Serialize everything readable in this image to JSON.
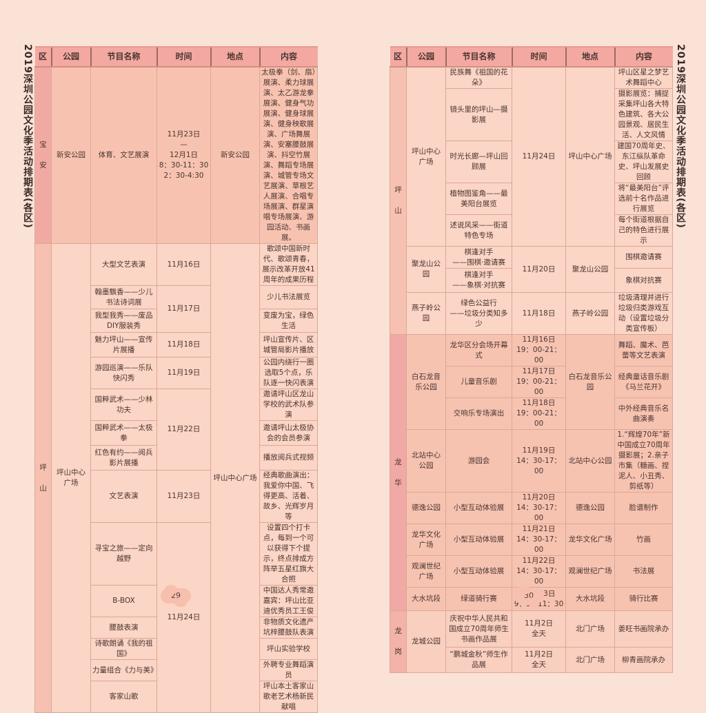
{
  "title": "2019深圳公园文化季活动排期表(各区)",
  "headers": [
    "区",
    "公园",
    "节目名称",
    "时间",
    "地点",
    "内容"
  ],
  "colors": {
    "background": "#fbe2d6",
    "header": "#f3a9a1",
    "宝安": {
      "district": "#f1aaa3",
      "cell": "#f7c3b0"
    },
    "坪山": {
      "district": "#f6c1b0",
      "cell": "#fbd5c5"
    },
    "龙华": {
      "district": "#f0a9a4",
      "cell": "#f7c3b1"
    },
    "龙岗": {
      "district": "#f3b3a8",
      "cell": "#f9cfbf"
    }
  },
  "pages": [
    {
      "page_number": "29",
      "districts": [
        {
          "name": "宝安",
          "parks": [
            {
              "name": "新安公园",
              "place": "新安公园",
              "sessions": [
                {
                  "time": "11月23日\n—\n12月1日\n8：30-11：30\n2：30-4:30",
                  "programs": [
                    {
                      "name": "体育、文艺展演",
                      "content": "太极拳（剑、扇）展演、柔力球展演、太乙游龙拳展演、健身气功展演、健身球展演、健身秧歌展演、广场舞展演、安塞腰鼓展演、抖空竹展演、舞蹈专场展演、城管专场文艺展演、草根艺人展演、合唱专场展演、群星演唱专场展演、游园活动、书画展。"
                    }
                  ]
                }
              ]
            }
          ]
        },
        {
          "name": "坪山",
          "parks": [
            {
              "name": "坪山中心广场",
              "place": "坪山中心广场",
              "sessions": [
                {
                  "time": "11月16日",
                  "programs": [
                    {
                      "name": "大型文艺表演",
                      "content": "歌颂中国新时代、歌颂青春，展示改革开放41周年的成果历程"
                    }
                  ]
                },
                {
                  "time": "11月17日",
                  "programs": [
                    {
                      "name": "翰墨飘香——少儿书法诗词展",
                      "content": "少儿书法展览"
                    },
                    {
                      "name": "我型我秀——废品DIY服装秀",
                      "content": "变废为宝，绿色生活"
                    }
                  ]
                },
                {
                  "time": "11月18日",
                  "programs": [
                    {
                      "name": "魅力坪山——宣传片展播",
                      "content": "坪山宣传片、区城管局影片播放"
                    }
                  ]
                },
                {
                  "time": "11月19日",
                  "programs": [
                    {
                      "name": "游园巡演——乐队快闪秀",
                      "content": "公园内绕行一圈选取5个点，乐队逐一快闪表演"
                    }
                  ]
                },
                {
                  "time": "11月22日",
                  "programs": [
                    {
                      "name": "国粹武术——少林功夫",
                      "content": "邀请坪山区龙山学校的武术队参演"
                    },
                    {
                      "name": "国粹武术——太极拳",
                      "content": "邀请坪山太极协会的会员参演"
                    },
                    {
                      "name": "红色有约——阅兵影片展播",
                      "content": "播放阅兵式视频"
                    }
                  ]
                },
                {
                  "time": "11月23日",
                  "programs": [
                    {
                      "name": "文艺表演",
                      "content": "经典歌曲演出：我爱你中国、飞得更高、活着、故乡、光辉岁月等"
                    }
                  ]
                },
                {
                  "time": "11月24日",
                  "programs": [
                    {
                      "name": "寻宝之旅——定向越野",
                      "content": "设置四个打卡点，每到一个可以获得下个提示，终点排成方阵举五星红旗大合照"
                    },
                    {
                      "name": "B-BOX",
                      "content": "中国达人秀常邀嘉宾：坪山比亚迪优秀员工王俊"
                    },
                    {
                      "name": "腰鼓表演",
                      "content": "非物质文化遗产坑梓腰鼓队表演"
                    },
                    {
                      "name": "诗歌朗诵《我的祖国》",
                      "content": "坪山实验学校"
                    },
                    {
                      "name": "力量组合《力与美》",
                      "content": "外聘专业舞蹈演员"
                    },
                    {
                      "name": "客家山歌",
                      "content": "坪山本土客家山歌老艺术杨新民献唱"
                    }
                  ]
                }
              ]
            }
          ]
        }
      ]
    },
    {
      "page_number": "30",
      "districts": [
        {
          "name": "坪山",
          "parks": [
            {
              "name": "坪山中心广场",
              "place": "坪山中心广场",
              "sessions": [
                {
                  "time": "11月24日",
                  "programs": [
                    {
                      "name": "民族舞《祖国的花朵》",
                      "content": "坪山区星之梦艺术舞蹈中心"
                    },
                    {
                      "name": "镜头里的坪山—摄影展",
                      "content": "摄影展览：捕捉采集坪山各大特色建筑、各大公园景观、居民生活、人文风情"
                    },
                    {
                      "name": "时光长廊—坪山回顾展",
                      "content": "建国70周年史、东江纵队革命史、坪山发展史回顾"
                    },
                    {
                      "name": "植物图鉴角——最美阳台展览",
                      "content": "将“最美阳台”评选前十名作品进行展览"
                    },
                    {
                      "name": "述说风采——街道特色专场",
                      "content": "每个街道根据自己的特色进行展示"
                    }
                  ]
                }
              ]
            },
            {
              "name": "聚龙山公园",
              "place": "聚龙山公园",
              "sessions": [
                {
                  "time": "11月20日",
                  "programs": [
                    {
                      "name": "棋逢对手\n——围棋·邀请赛",
                      "content": "围棋邀请赛",
                      "big": true
                    },
                    {
                      "name": "棋逢对手\n——象棋·对抗赛",
                      "content": "象棋对抗赛",
                      "big": true
                    }
                  ]
                }
              ]
            },
            {
              "name": "燕子岭公园",
              "place": "燕子岭公园",
              "sessions": [
                {
                  "time": "11月18日",
                  "programs": [
                    {
                      "name": "绿色公益行\n——垃圾分类知多少",
                      "content": "垃圾清理并进行垃圾归类游戏互动（设置垃圾分类宣传板）",
                      "big": true
                    }
                  ]
                }
              ]
            }
          ]
        },
        {
          "name": "龙华",
          "parks": [
            {
              "name": "白石龙音乐公园",
              "place": "白石龙音乐公园",
              "sessions": [
                {
                  "time": "11月16日\n19：00-21：00",
                  "programs": [
                    {
                      "name": "龙华区分会场开幕式",
                      "content": "舞蹈、魔术、芭蕾等文艺表演"
                    }
                  ]
                },
                {
                  "time": "11月17日\n19：00-21：00",
                  "programs": [
                    {
                      "name": "儿童音乐剧",
                      "content": "经典童话音乐剧《马兰花开》"
                    }
                  ]
                },
                {
                  "time": "11月18日\n19：00-21：00",
                  "programs": [
                    {
                      "name": "交响乐专场演出",
                      "content": "中外经典音乐名曲演奏"
                    }
                  ]
                }
              ]
            },
            {
              "name": "北站中心公园",
              "place": "北站中心公园",
              "sessions": [
                {
                  "time": "11月19日\n14：30-17：00",
                  "programs": [
                    {
                      "name": "游园会",
                      "content": "1.“辉煌70年”新中国成立70周年摄影展；2.亲子市集（糖画、捏泥人、小丑秀、剪纸等）"
                    }
                  ]
                }
              ]
            },
            {
              "name": "德逸公园",
              "place": "德逸公园",
              "sessions": [
                {
                  "time": "11月20日\n14：30-17：00",
                  "programs": [
                    {
                      "name": "小型互动体验展",
                      "content": "脸谱制作",
                      "big": true
                    }
                  ]
                }
              ]
            },
            {
              "name": "龙华文化广场",
              "place": "龙华文化广场",
              "sessions": [
                {
                  "time": "11月21日\n14：30-17：00",
                  "programs": [
                    {
                      "name": "小型互动体验展",
                      "content": "竹画",
                      "big": true
                    }
                  ]
                }
              ]
            },
            {
              "name": "观澜世纪广场",
              "place": "观澜世纪广场",
              "sessions": [
                {
                  "time": "11月22日\n14：30-17：00",
                  "programs": [
                    {
                      "name": "小型互动体验展",
                      "content": "书法展",
                      "big": true
                    }
                  ]
                }
              ]
            },
            {
              "name": "大水坑段",
              "place": "大水坑段",
              "sessions": [
                {
                  "time": "11月23日\n9：30-11：30",
                  "programs": [
                    {
                      "name": "绿道骑行赛",
                      "content": "骑行比赛",
                      "big": true
                    }
                  ]
                }
              ]
            }
          ]
        },
        {
          "name": "龙岗",
          "parks": [
            {
              "name": "龙城公园",
              "sessions": [
                {
                  "time": "11月2日\n全天",
                  "place": "北门广场",
                  "programs": [
                    {
                      "name": "庆祝中华人民共和国成立70周年师生书画作品展",
                      "content": "姜旺书画院承办",
                      "big": true
                    }
                  ]
                },
                {
                  "time": "11月2日\n全天",
                  "place": "北门广场",
                  "programs": [
                    {
                      "name": "“鹏城金秋”师生作品展",
                      "content": "柳青画院承办",
                      "big": true
                    }
                  ]
                }
              ]
            }
          ]
        }
      ]
    }
  ]
}
